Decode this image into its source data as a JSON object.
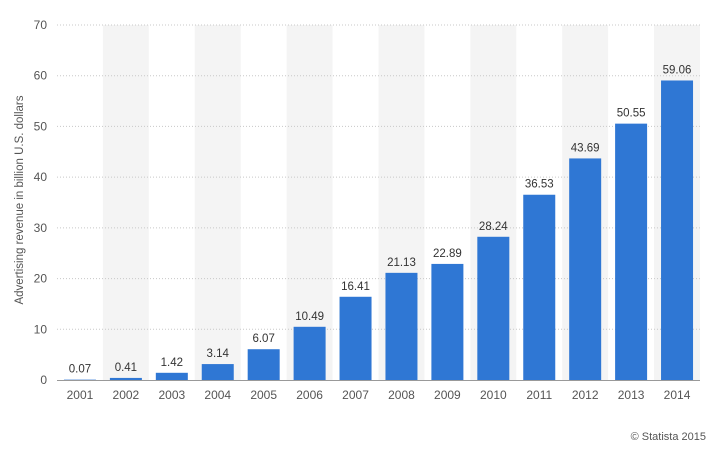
{
  "chart_data": {
    "type": "bar",
    "categories": [
      "2001",
      "2002",
      "2003",
      "2004",
      "2005",
      "2006",
      "2007",
      "2008",
      "2009",
      "2010",
      "2011",
      "2012",
      "2013",
      "2014"
    ],
    "values": [
      0.07,
      0.41,
      1.42,
      3.14,
      6.07,
      10.49,
      16.41,
      21.13,
      22.89,
      28.24,
      36.53,
      43.69,
      50.55,
      59.06
    ],
    "value_labels": [
      "0.07",
      "0.41",
      "1.42",
      "3.14",
      "6.07",
      "10.49",
      "16.41",
      "21.13",
      "22.89",
      "28.24",
      "36.53",
      "43.69",
      "50.55",
      "59.06"
    ],
    "title": "",
    "xlabel": "",
    "ylabel": "Advertising revenue in billion U.S. dollars",
    "ylim": [
      0,
      70
    ],
    "yticks": [
      0,
      10,
      20,
      30,
      40,
      50,
      60,
      70
    ],
    "grid": true,
    "bar_color": "#2f77d4",
    "band_color": "#f4f4f4"
  },
  "credit": "© Statista 2015"
}
